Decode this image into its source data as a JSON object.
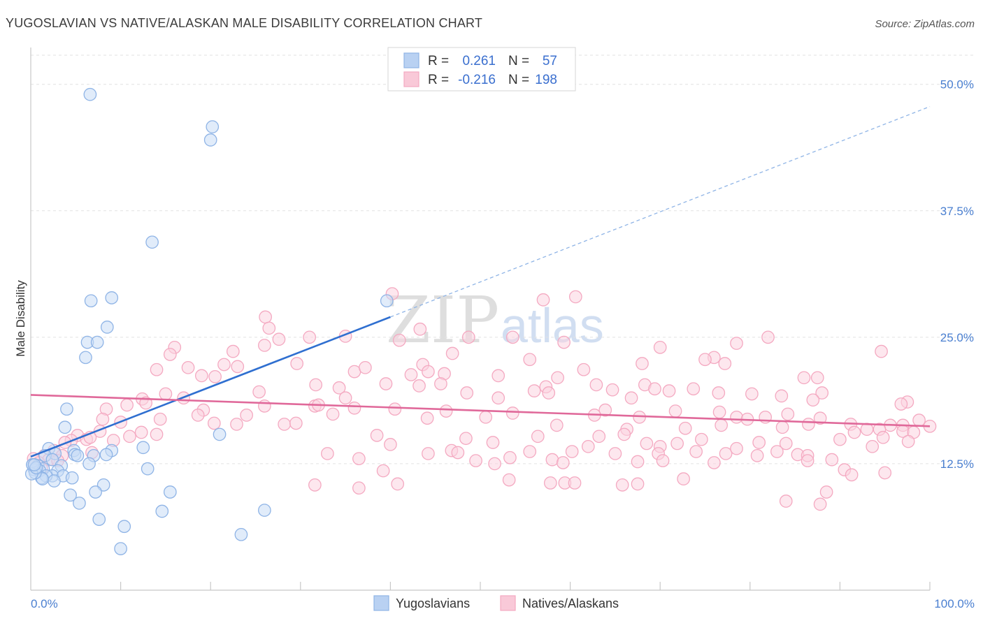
{
  "chart_data": {
    "type": "scatter",
    "title": "YUGOSLAVIAN VS NATIVE/ALASKAN MALE DISABILITY CORRELATION CHART",
    "source": "Source: ZipAtlas.com",
    "xlabel": "",
    "ylabel": "Male Disability",
    "xlim": [
      0,
      100
    ],
    "ylim": [
      0,
      52.5
    ],
    "x_tick_labels": [
      "0.0%",
      "100.0%"
    ],
    "y_ticks": [
      12.5,
      25.0,
      37.5,
      50.0
    ],
    "y_tick_labels": [
      "12.5%",
      "25.0%",
      "37.5%",
      "50.0%"
    ],
    "watermark": [
      "ZIP",
      "atlas"
    ],
    "stats": [
      {
        "r_label": "R =",
        "r": "0.261",
        "n_label": "N =",
        "n": "57"
      },
      {
        "r_label": "R =",
        "r": "-0.216",
        "n_label": "N =",
        "n": "198"
      }
    ],
    "series": [
      {
        "name": "Yugoslavians",
        "color": "#8fb4e6",
        "line_color": "#2f6fd0",
        "trend": {
          "x0": 0,
          "y0": 13.2,
          "x1": 40,
          "y1": 27.0,
          "dash_to_x": 100,
          "dash_to_y": 47.8
        },
        "points": [
          [
            6.6,
            49.0
          ],
          [
            20.0,
            44.5
          ],
          [
            20.2,
            45.8
          ],
          [
            13.5,
            34.4
          ],
          [
            6.7,
            28.6
          ],
          [
            9.0,
            28.9
          ],
          [
            8.5,
            26.0
          ],
          [
            6.3,
            24.5
          ],
          [
            7.4,
            24.5
          ],
          [
            6.1,
            23.0
          ],
          [
            4.0,
            17.9
          ],
          [
            3.8,
            16.1
          ],
          [
            21.0,
            15.4
          ],
          [
            2.0,
            14.0
          ],
          [
            4.8,
            13.8
          ],
          [
            9.0,
            13.8
          ],
          [
            2.7,
            13.5
          ],
          [
            4.9,
            13.4
          ],
          [
            8.4,
            13.4
          ],
          [
            1.6,
            13.3
          ],
          [
            5.2,
            13.3
          ],
          [
            2.4,
            12.9
          ],
          [
            7.0,
            13.3
          ],
          [
            12.5,
            14.1
          ],
          [
            6.5,
            12.5
          ],
          [
            3.4,
            12.3
          ],
          [
            0.2,
            12.4
          ],
          [
            0.8,
            12.3
          ],
          [
            1.4,
            12.0
          ],
          [
            0.4,
            11.9
          ],
          [
            1.0,
            11.8
          ],
          [
            3.0,
            11.8
          ],
          [
            2.4,
            11.3
          ],
          [
            3.6,
            11.3
          ],
          [
            1.7,
            11.3
          ],
          [
            1.2,
            11.1
          ],
          [
            2.6,
            10.8
          ],
          [
            1.3,
            11.0
          ],
          [
            0.5,
            11.6
          ],
          [
            0.1,
            11.5
          ],
          [
            4.6,
            11.1
          ],
          [
            13.0,
            12.0
          ],
          [
            0.2,
            12.4
          ],
          [
            0.6,
            12.1
          ],
          [
            8.1,
            10.4
          ],
          [
            15.5,
            9.7
          ],
          [
            7.2,
            9.7
          ],
          [
            4.4,
            9.4
          ],
          [
            5.4,
            8.6
          ],
          [
            26.0,
            7.9
          ],
          [
            14.6,
            7.8
          ],
          [
            7.6,
            7.0
          ],
          [
            10.4,
            6.3
          ],
          [
            23.4,
            5.5
          ],
          [
            10.0,
            4.1
          ],
          [
            39.6,
            28.6
          ],
          [
            0.4,
            12.4
          ]
        ]
      },
      {
        "name": "Natives/Alaskans",
        "color": "#f4a9c1",
        "line_color": "#e0699a",
        "trend": {
          "x0": 0,
          "y0": 19.3,
          "x1": 100,
          "y1": 16.2
        },
        "points": [
          [
            40.2,
            29.3
          ],
          [
            57.0,
            28.7
          ],
          [
            60.6,
            29.0
          ],
          [
            26.1,
            27.0
          ],
          [
            26.5,
            25.9
          ],
          [
            43.3,
            25.8
          ],
          [
            27.6,
            24.8
          ],
          [
            31.0,
            25.0
          ],
          [
            35.0,
            25.1
          ],
          [
            48.7,
            25.0
          ],
          [
            53.6,
            25.0
          ],
          [
            41.0,
            24.7
          ],
          [
            59.3,
            24.5
          ],
          [
            82.0,
            25.0
          ],
          [
            70.0,
            24.0
          ],
          [
            78.5,
            24.4
          ],
          [
            94.6,
            23.6
          ],
          [
            16.0,
            24.0
          ],
          [
            26.0,
            24.2
          ],
          [
            15.5,
            23.3
          ],
          [
            22.5,
            23.6
          ],
          [
            46.9,
            23.4
          ],
          [
            76.0,
            23.0
          ],
          [
            61.5,
            21.8
          ],
          [
            36.0,
            21.6
          ],
          [
            55.5,
            22.8
          ],
          [
            68.0,
            22.4
          ],
          [
            43.6,
            22.3
          ],
          [
            37.2,
            22.0
          ],
          [
            29.6,
            22.4
          ],
          [
            21.5,
            22.3
          ],
          [
            14.0,
            21.8
          ],
          [
            17.5,
            22.0
          ],
          [
            23.0,
            22.1
          ],
          [
            19.0,
            21.2
          ],
          [
            20.5,
            21.1
          ],
          [
            42.3,
            21.3
          ],
          [
            46.0,
            21.4
          ],
          [
            52.0,
            21.2
          ],
          [
            58.6,
            21.0
          ],
          [
            75.0,
            22.8
          ],
          [
            86.0,
            21.0
          ],
          [
            87.5,
            21.0
          ],
          [
            88.0,
            19.5
          ],
          [
            87.0,
            18.8
          ],
          [
            80.2,
            19.4
          ],
          [
            83.5,
            19.2
          ],
          [
            68.3,
            20.3
          ],
          [
            64.7,
            19.8
          ],
          [
            56.0,
            19.7
          ],
          [
            48.5,
            19.5
          ],
          [
            31.7,
            20.3
          ],
          [
            34.3,
            20.0
          ],
          [
            39.5,
            20.4
          ],
          [
            43.2,
            20.2
          ],
          [
            45.6,
            20.4
          ],
          [
            62.9,
            20.3
          ],
          [
            69.4,
            19.9
          ],
          [
            71.0,
            19.7
          ],
          [
            73.7,
            19.9
          ],
          [
            44.2,
            21.6
          ],
          [
            57.3,
            20.1
          ],
          [
            77.2,
            22.4
          ],
          [
            52.0,
            19.0
          ],
          [
            53.6,
            17.5
          ],
          [
            46.2,
            17.7
          ],
          [
            57.6,
            19.5
          ],
          [
            66.8,
            19.0
          ],
          [
            76.5,
            19.5
          ],
          [
            97.5,
            18.6
          ],
          [
            35.0,
            19.0
          ],
          [
            25.4,
            19.6
          ],
          [
            15.0,
            19.4
          ],
          [
            12.4,
            18.9
          ],
          [
            10.7,
            18.3
          ],
          [
            8.4,
            17.9
          ],
          [
            12.8,
            18.5
          ],
          [
            17.0,
            19.0
          ],
          [
            19.2,
            17.8
          ],
          [
            26.0,
            18.2
          ],
          [
            31.6,
            18.2
          ],
          [
            36.0,
            18.0
          ],
          [
            40.5,
            17.9
          ],
          [
            63.9,
            17.8
          ],
          [
            62.7,
            17.3
          ],
          [
            67.7,
            17.1
          ],
          [
            71.7,
            17.7
          ],
          [
            76.6,
            17.6
          ],
          [
            78.5,
            17.1
          ],
          [
            79.7,
            16.9
          ],
          [
            84.2,
            17.4
          ],
          [
            87.8,
            17.0
          ],
          [
            96.8,
            18.4
          ],
          [
            97.0,
            16.3
          ],
          [
            100.0,
            16.2
          ],
          [
            24.0,
            17.3
          ],
          [
            33.6,
            17.4
          ],
          [
            32.0,
            18.3
          ],
          [
            18.6,
            17.3
          ],
          [
            10.0,
            16.6
          ],
          [
            8.0,
            16.9
          ],
          [
            14.4,
            16.9
          ],
          [
            22.9,
            16.4
          ],
          [
            28.2,
            16.4
          ],
          [
            29.5,
            16.5
          ],
          [
            20.4,
            16.5
          ],
          [
            44.1,
            17.0
          ],
          [
            50.6,
            17.1
          ],
          [
            58.5,
            16.3
          ],
          [
            66.3,
            15.9
          ],
          [
            76.8,
            16.3
          ],
          [
            83.6,
            16.1
          ],
          [
            86.5,
            16.4
          ],
          [
            81.7,
            17.1
          ],
          [
            91.2,
            16.4
          ],
          [
            95.6,
            16.3
          ],
          [
            94.4,
            15.9
          ],
          [
            91.6,
            15.6
          ],
          [
            94.8,
            15.1
          ],
          [
            97.0,
            15.7
          ],
          [
            98.2,
            15.6
          ],
          [
            7.7,
            15.7
          ],
          [
            12.3,
            15.6
          ],
          [
            5.2,
            15.3
          ],
          [
            6.2,
            14.9
          ],
          [
            6.6,
            15.1
          ],
          [
            4.5,
            14.8
          ],
          [
            3.8,
            14.6
          ],
          [
            9.2,
            14.8
          ],
          [
            11.0,
            15.2
          ],
          [
            14.0,
            15.4
          ],
          [
            40.0,
            14.4
          ],
          [
            38.5,
            15.3
          ],
          [
            48.4,
            15.0
          ],
          [
            51.4,
            14.6
          ],
          [
            56.4,
            15.2
          ],
          [
            63.2,
            15.2
          ],
          [
            66.0,
            15.4
          ],
          [
            72.8,
            16.0
          ],
          [
            74.6,
            14.9
          ],
          [
            84.0,
            14.5
          ],
          [
            90.0,
            14.9
          ],
          [
            93.6,
            14.2
          ],
          [
            97.6,
            14.7
          ],
          [
            70.0,
            14.2
          ],
          [
            71.9,
            14.5
          ],
          [
            81.0,
            14.6
          ],
          [
            93.0,
            15.9
          ],
          [
            98.8,
            16.8
          ],
          [
            2.6,
            13.8
          ],
          [
            3.5,
            13.3
          ],
          [
            1.5,
            13.3
          ],
          [
            2.0,
            12.9
          ],
          [
            0.3,
            13.0
          ],
          [
            0.9,
            12.6
          ],
          [
            1.2,
            12.0
          ],
          [
            3.0,
            12.8
          ],
          [
            6.8,
            13.6
          ],
          [
            46.8,
            13.8
          ],
          [
            47.5,
            13.6
          ],
          [
            53.3,
            13.1
          ],
          [
            55.5,
            13.7
          ],
          [
            60.2,
            13.7
          ],
          [
            62.0,
            14.2
          ],
          [
            65.0,
            13.5
          ],
          [
            68.5,
            14.5
          ],
          [
            69.8,
            13.5
          ],
          [
            74.0,
            13.7
          ],
          [
            77.3,
            13.5
          ],
          [
            78.5,
            14.0
          ],
          [
            80.8,
            13.3
          ],
          [
            83.0,
            13.7
          ],
          [
            85.3,
            13.4
          ],
          [
            86.4,
            13.3
          ],
          [
            89.1,
            12.9
          ],
          [
            44.2,
            13.5
          ],
          [
            36.5,
            13.0
          ],
          [
            33.0,
            13.5
          ],
          [
            49.5,
            12.8
          ],
          [
            51.6,
            12.5
          ],
          [
            58.0,
            12.9
          ],
          [
            59.2,
            12.6
          ],
          [
            67.5,
            12.7
          ],
          [
            70.3,
            12.8
          ],
          [
            76.0,
            12.6
          ],
          [
            86.4,
            12.8
          ],
          [
            90.5,
            11.9
          ],
          [
            91.3,
            11.4
          ],
          [
            95.0,
            11.6
          ],
          [
            39.2,
            11.8
          ],
          [
            53.2,
            10.9
          ],
          [
            57.8,
            10.6
          ],
          [
            59.4,
            10.6
          ],
          [
            60.5,
            10.6
          ],
          [
            65.8,
            10.4
          ],
          [
            67.5,
            10.5
          ],
          [
            72.6,
            11.0
          ],
          [
            31.6,
            10.4
          ],
          [
            36.5,
            10.1
          ],
          [
            40.8,
            10.5
          ],
          [
            84.0,
            8.8
          ],
          [
            88.5,
            9.7
          ],
          [
            87.8,
            8.5
          ]
        ]
      }
    ]
  }
}
